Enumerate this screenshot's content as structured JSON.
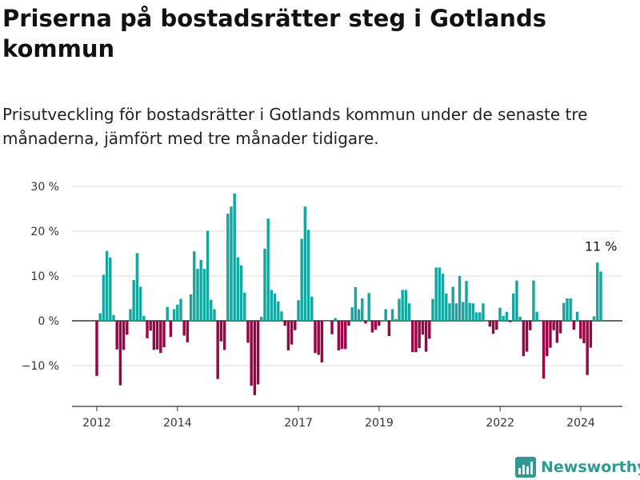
{
  "title": "Priserna på bostadsrätter steg i Gotlands kommun",
  "subtitle": "Prisutveckling för bostadsrätter i Gotlands kommun under de senaste tre månaderna, jämfört med tre månader tidigare.",
  "logo_text": "Newsworthy",
  "colors": {
    "positive": "#17a69f",
    "negative": "#990648",
    "grid": "#dddddd",
    "axis": "#333333",
    "logo": "#2f9a93"
  },
  "chart_data": {
    "type": "bar",
    "title": "",
    "xlabel": "",
    "ylabel": "",
    "ylim": [
      -19,
      30
    ],
    "yticks": [
      -10,
      0,
      10,
      20,
      30
    ],
    "ytick_labels": [
      "−10 %",
      "0 %",
      "10 %",
      "20 %",
      "30 %"
    ],
    "xticks": [
      2012,
      2014,
      2017,
      2019,
      2022,
      2024
    ],
    "xtick_labels": [
      "2012",
      "2014",
      "2017",
      "2019",
      "2022",
      "2024"
    ],
    "grid": true,
    "annotation": {
      "text": "11 %",
      "x": 2024.42,
      "y": 11
    },
    "x_start": 2012.0,
    "x_step": 0.0833,
    "values": [
      -12.3,
      1.7,
      10.3,
      15.6,
      14.1,
      1.3,
      -6.4,
      -14.4,
      -6.5,
      -3.1,
      2.6,
      9.1,
      15.1,
      7.6,
      1.1,
      -3.9,
      -2.2,
      -6.5,
      -6.4,
      -7.2,
      -5.9,
      3.1,
      -3.6,
      2.6,
      3.6,
      4.9,
      -3.3,
      -4.8,
      5.9,
      15.5,
      11.6,
      13.6,
      11.6,
      20.1,
      4.7,
      2.6,
      -13.0,
      -4.6,
      -6.5,
      23.9,
      25.5,
      28.4,
      14.2,
      12.4,
      6.3,
      -4.9,
      -14.5,
      -16.6,
      -14.2,
      0.9,
      16.1,
      22.8,
      6.9,
      6.1,
      4.3,
      2.1,
      -1.1,
      -6.6,
      -5.3,
      -2.1,
      4.6,
      18.3,
      25.5,
      20.3,
      5.4,
      -7.2,
      -7.6,
      -9.3,
      0.0,
      0.0,
      -3.0,
      0.6,
      -6.6,
      -6.3,
      -6.3,
      -1.1,
      3.0,
      7.5,
      2.6,
      5.0,
      -0.6,
      6.2,
      -2.6,
      -2.0,
      -1.1,
      0.1,
      2.6,
      -3.4,
      2.6,
      0.4,
      4.9,
      6.9,
      6.9,
      3.9,
      -7.0,
      -7.0,
      -6.1,
      -3.1,
      -6.9,
      -4.0,
      4.9,
      11.9,
      11.9,
      10.5,
      6.1,
      3.9,
      7.6,
      3.9,
      10.0,
      4.2,
      8.9,
      4.0,
      3.9,
      1.9,
      1.9,
      3.9,
      0.0,
      -1.3,
      -2.9,
      -2.0,
      2.9,
      1.1,
      2.0,
      -0.3,
      6.1,
      9.0,
      0.9,
      -7.9,
      -6.9,
      -2.1,
      9.0,
      2.0,
      0.0,
      -12.9,
      -7.9,
      -6.0,
      -2.1,
      -4.9,
      -2.8,
      4.0,
      5.0,
      5.0,
      -2.0,
      2.0,
      -4.0,
      -5.0,
      -12.1,
      -6.0,
      1.0,
      13.0,
      11.0
    ],
    "negative_bar_indices": [],
    "highlight_last": true
  }
}
